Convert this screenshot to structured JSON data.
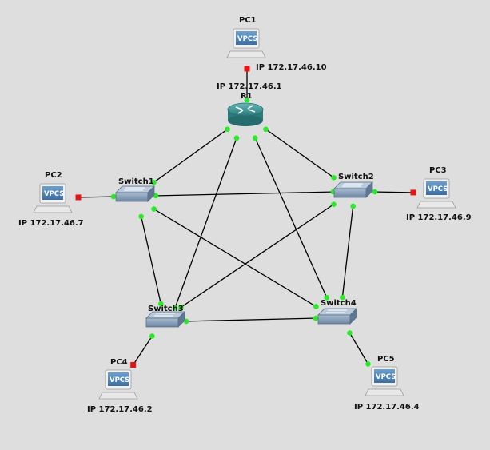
{
  "colors": {
    "background": "#dedede",
    "link": "#000000",
    "port_up": "#22ee22",
    "port_down": "#ee1111",
    "switch": "#7d93ad",
    "router": "#3f9b9b",
    "vpcs_screen": "#4a7fb5"
  },
  "router": {
    "name": "R1",
    "ip": "IP 172.17.46.1",
    "icon": "router-icon"
  },
  "switches": [
    {
      "id": "sw1",
      "name": "Switch1",
      "icon": "switch-icon"
    },
    {
      "id": "sw2",
      "name": "Switch2",
      "icon": "switch-icon"
    },
    {
      "id": "sw3",
      "name": "Switch3",
      "icon": "switch-icon"
    },
    {
      "id": "sw4",
      "name": "Switch4",
      "icon": "switch-icon"
    }
  ],
  "pcs": [
    {
      "id": "pc1",
      "name": "PC1",
      "screen": "VPCS",
      "ip": "IP 172.17.46.10",
      "icon": "vpcs-icon"
    },
    {
      "id": "pc2",
      "name": "PC2",
      "screen": "VPCS",
      "ip": "IP 172.17.46.7",
      "icon": "vpcs-icon"
    },
    {
      "id": "pc3",
      "name": "PC3",
      "screen": "VPCS",
      "ip": "IP 172.17.46.9",
      "icon": "vpcs-icon"
    },
    {
      "id": "pc4",
      "name": "PC4",
      "screen": "VPCS",
      "ip": "IP 172.17.46.2",
      "icon": "vpcs-icon"
    },
    {
      "id": "pc5",
      "name": "PC5",
      "screen": "VPCS",
      "ip": "IP 172.17.46.4",
      "icon": "vpcs-icon"
    }
  ],
  "links": [
    {
      "from": "pc1",
      "to": "r1",
      "status": "down"
    },
    {
      "from": "r1",
      "to": "sw1",
      "status": "up"
    },
    {
      "from": "r1",
      "to": "sw2",
      "status": "up"
    },
    {
      "from": "r1",
      "to": "sw3",
      "status": "up"
    },
    {
      "from": "r1",
      "to": "sw4",
      "status": "up"
    },
    {
      "from": "pc2",
      "to": "sw1",
      "status": "down"
    },
    {
      "from": "pc3",
      "to": "sw2",
      "status": "down"
    },
    {
      "from": "pc4",
      "to": "sw3",
      "status": "down"
    },
    {
      "from": "pc5",
      "to": "sw4",
      "status": "up"
    },
    {
      "from": "sw1",
      "to": "sw2",
      "status": "up"
    },
    {
      "from": "sw1",
      "to": "sw3",
      "status": "up"
    },
    {
      "from": "sw1",
      "to": "sw4",
      "status": "up"
    },
    {
      "from": "sw2",
      "to": "sw3",
      "status": "up"
    },
    {
      "from": "sw2",
      "to": "sw4",
      "status": "up"
    },
    {
      "from": "sw3",
      "to": "sw4",
      "status": "up"
    }
  ]
}
